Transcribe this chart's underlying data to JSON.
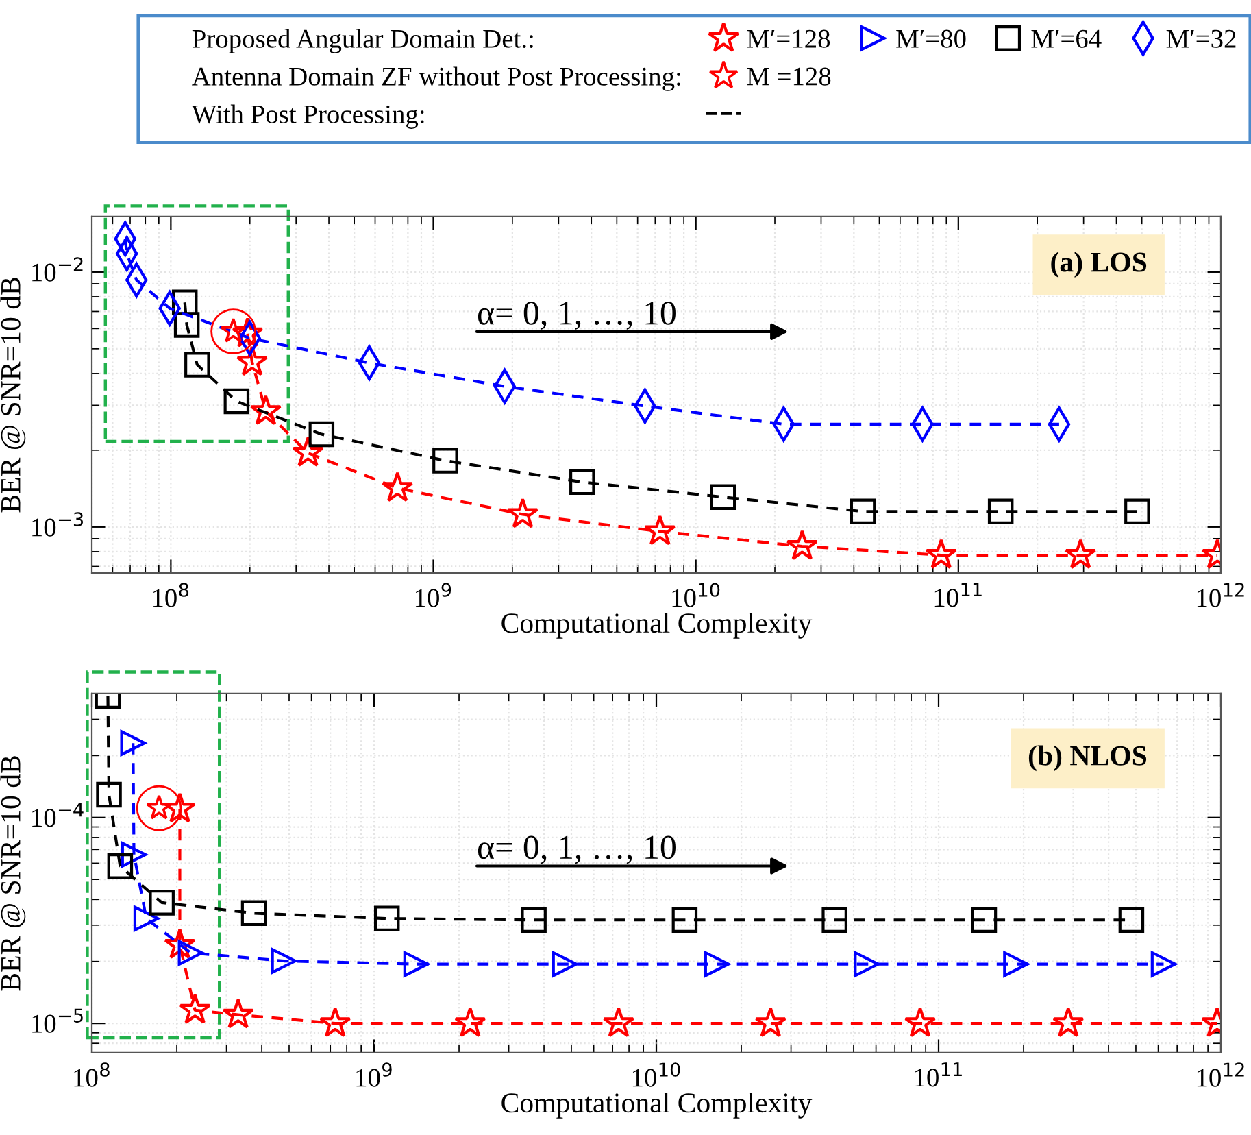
{
  "chart_data": [
    {
      "type": "line",
      "title": "(a) LOS",
      "xlabel": "Computational Complexity",
      "ylabel": "BER @ SNR=10 dB",
      "annotations": [
        "α= 0, 1, …, 10"
      ],
      "log": "xy",
      "grid": true,
      "xlim": [
        50000000.0,
        1000000000000.0
      ],
      "xticks": [
        {
          "value": 100000000.0,
          "label": "10$^{8}$"
        },
        {
          "value": 1000000000.0,
          "label": "10$^{9}$"
        },
        {
          "value": 10000000000.0,
          "label": "10$^{10}$"
        },
        {
          "value": 100000000000.0,
          "label": "10$^{11}$"
        },
        {
          "value": 1000000000000.0,
          "label": "10$^{12}$"
        }
      ],
      "ylim": [
        0.00066,
        0.0165
      ],
      "yticks": [
        {
          "value": 0.001,
          "label": "10$^{−3}$"
        },
        {
          "value": 0.01,
          "label": "10$^{−2}$"
        }
      ],
      "series": [
        {
          "color": "#ff0000",
          "marker": "star",
          "line_style": "dashed",
          "x": [
            196000000.0,
            204000000.0,
            230000000.0,
            333000000.0,
            730000000.0,
            2190000000.0,
            7300000000.0,
            25400000000.0,
            86000000000.0,
            292000000000.0,
            970000000000.0
          ],
          "values": [
            0.00573,
            0.00443,
            0.00284,
            0.00195,
            0.00142,
            0.00112,
            0.00096,
            0.00084,
            0.000775,
            0.000775,
            0.000775
          ]
        },
        {
          "color": "#000000",
          "marker": "square",
          "line_style": "dashed",
          "x": [
            113000000.0,
            115000000.0,
            126000000.0,
            178000000.0,
            375000000.0,
            1110000000.0,
            3690000000.0,
            12700000000.0,
            43300000000.0,
            145000000000.0,
            480000000000.0
          ],
          "values": [
            0.0076,
            0.0062,
            0.00433,
            0.00311,
            0.00231,
            0.00182,
            0.0015,
            0.00131,
            0.00115,
            0.00115,
            0.00115
          ]
        },
        {
          "name": "M′=32",
          "color": "#0000ff",
          "marker": "diamond",
          "line_style": "dashed",
          "x": [
            67000000.0,
            68000000.0,
            74000000.0,
            99000000.0,
            200000000.0,
            570000000.0,
            1870000000.0,
            6400000000.0,
            21600000000.0,
            73000000000.0,
            242000000000.0
          ],
          "values": [
            0.0135,
            0.0118,
            0.0093,
            0.0072,
            0.0055,
            0.0044,
            0.00356,
            0.00298,
            0.00253,
            0.00253,
            0.00253
          ]
        },
        {
          "type": "scatter",
          "color": "#ff0000",
          "marker": [
            "circle",
            "star"
          ],
          "x": [
            173000000.0
          ],
          "values": [
            0.00585
          ]
        }
      ]
    },
    {
      "type": "line",
      "title": "(b) NLOS",
      "xlabel": "Computational Complexity",
      "ylabel": "BER @ SNR=10 dB",
      "annotations": [
        "Proposed Angular Domain Det.:",
        "Antenna Domain ZF without Post Processing:",
        "With Post Processing:",
        "α= 0, 1, …, 10"
      ],
      "log": "xy",
      "grid": true,
      "legend": "top",
      "xlim": [
        100000000.0,
        1000000000000.0
      ],
      "xticks": [
        {
          "value": 100000000.0,
          "label": "10$^{8}$"
        },
        {
          "value": 1000000000.0,
          "label": "10$^{9}$"
        },
        {
          "value": 10000000000.0,
          "label": "10$^{10}$"
        },
        {
          "value": 100000000000.0,
          "label": "10$^{11}$"
        },
        {
          "value": 1000000000000.0,
          "label": "10$^{12}$"
        }
      ],
      "ylim": [
        7.2e-06,
        0.0004
      ],
      "yticks": [
        {
          "value": 1e-05,
          "label": "10$^{−5}$"
        },
        {
          "value": 0.0001,
          "label": "10$^{−4}$"
        }
      ],
      "series": [
        {
          "name": "M′=128",
          "color": "#ff0000",
          "marker": "star",
          "line_style": "dashed",
          "x": [
            205000000.0,
            205000000.0,
            232000000.0,
            330000000.0,
            728000000.0,
            2190000000.0,
            7350000000.0,
            25400000000.0,
            86000000000.0,
            288000000000.0,
            970000000000.0
          ],
          "values": [
            0.00011,
            2.4e-05,
            1.16e-05,
            1.1e-05,
            1e-05,
            1e-05,
            1e-05,
            1e-05,
            1e-05,
            1e-05,
            1e-05
          ]
        },
        {
          "name": "M′=80",
          "color": "#0000ff",
          "marker": "triangle",
          "line_style": "dashed",
          "x": [
            140000000.0,
            141000000.0,
            156000000.0,
            224000000.0,
            479000000.0,
            1410000000.0,
            4740000000.0,
            16400000000.0,
            55600000000.0,
            188000000000.0,
            627000000000.0
          ],
          "values": [
            0.00023,
            6.6e-05,
            3.23e-05,
            2.2e-05,
            2.01e-05,
            1.94e-05,
            1.94e-05,
            1.94e-05,
            1.94e-05,
            1.94e-05,
            1.94e-05
          ]
        },
        {
          "name": "M′=64",
          "color": "#000000",
          "marker": "square",
          "line_style": "dashed",
          "x": [
            114000000.0,
            115000000.0,
            126000000.0,
            177000000.0,
            375000000.0,
            1110000000.0,
            3680000000.0,
            12600000000.0,
            42800000000.0,
            145000000000.0,
            482000000000.0
          ],
          "values": [
            0.00039,
            0.000129,
            5.8e-05,
            3.86e-05,
            3.43e-05,
            3.23e-05,
            3.18e-05,
            3.18e-05,
            3.18e-05,
            3.18e-05,
            3.18e-05
          ]
        },
        {
          "name": "M =128",
          "type": "scatter",
          "color": "#ff0000",
          "marker": [
            "circle",
            "star"
          ],
          "x": [
            173000000.0
          ],
          "values": [
            0.000111
          ]
        }
      ]
    }
  ]
}
